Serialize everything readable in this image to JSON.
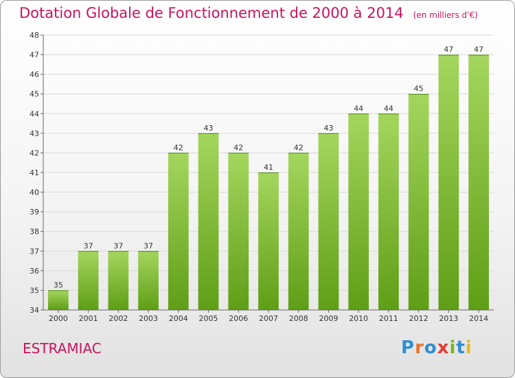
{
  "header": {
    "title": "Dotation Globale de Fonctionnement de 2000 à 2014",
    "subtitle": "(en milliers d'€)"
  },
  "footer": {
    "commune": "ESTRAMIAC",
    "logo": {
      "letters": [
        "P",
        "r",
        "o",
        "x",
        "i",
        "t",
        "i"
      ],
      "colors": [
        "#2f8fd0",
        "#e8732a",
        "#2f8fd0",
        "#e03c31",
        "#7ab51d",
        "#2f8fd0",
        "#e8b820"
      ]
    }
  },
  "colors": {
    "bar_light": "#a4d65e",
    "bar_dark": "#5f9e16",
    "gridline": "#d9d9d9"
  },
  "chart_data": {
    "type": "bar",
    "categories": [
      "2000",
      "2001",
      "2002",
      "2003",
      "2004",
      "2005",
      "2006",
      "2007",
      "2008",
      "2009",
      "2010",
      "2011",
      "2012",
      "2013",
      "2014"
    ],
    "values": [
      35,
      37,
      37,
      37,
      42,
      43,
      42,
      41,
      42,
      43,
      44,
      44,
      45,
      47,
      47
    ],
    "ylim": [
      34,
      48
    ],
    "yticks": [
      34,
      35,
      36,
      37,
      38,
      39,
      40,
      41,
      42,
      43,
      44,
      45,
      46,
      47,
      48
    ],
    "grid": true,
    "data_labels": true
  }
}
